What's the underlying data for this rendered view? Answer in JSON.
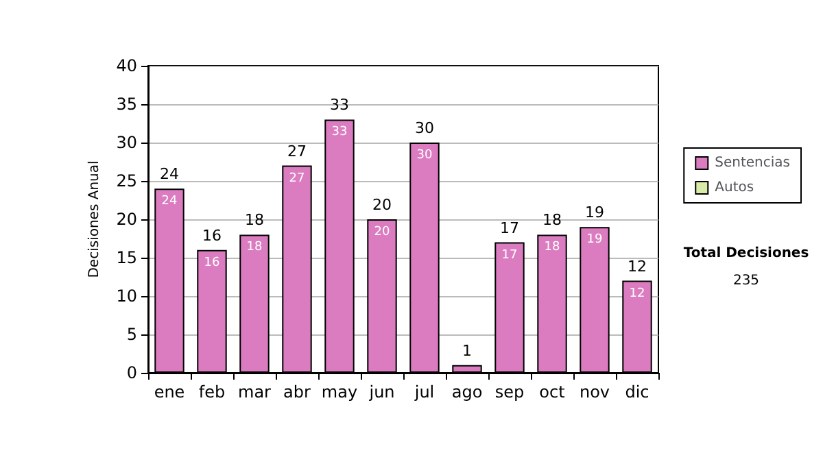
{
  "chart_data": {
    "type": "bar",
    "ylabel": "Decisiones Anual",
    "categories": [
      "ene",
      "feb",
      "mar",
      "abr",
      "may",
      "jun",
      "jul",
      "ago",
      "sep",
      "oct",
      "nov",
      "dic"
    ],
    "series": [
      {
        "name": "Sentencias",
        "color": "#dc7cc0",
        "values": [
          24,
          16,
          18,
          27,
          33,
          20,
          30,
          1,
          17,
          18,
          19,
          12
        ],
        "value_labels": [
          "24",
          "16",
          "18",
          "27",
          "33",
          "20",
          "30",
          null,
          "17",
          "18",
          "19",
          "12"
        ]
      },
      {
        "name": "Autos",
        "color": "#d8eca8",
        "values": [
          null,
          null,
          null,
          null,
          null,
          null,
          null,
          null,
          null,
          null,
          null,
          null
        ]
      }
    ],
    "stacked": true,
    "totals": [
      "24",
      "16",
      "18",
      "27",
      "33",
      "20",
      "30",
      "1",
      "17",
      "18",
      "19",
      "12"
    ],
    "ylim": [
      0,
      40
    ],
    "yticks": [
      0,
      5,
      10,
      15,
      20,
      25,
      30,
      35,
      40
    ],
    "grid": "y",
    "legend": "right",
    "annotations": [
      "Total Decisiones",
      "235"
    ]
  }
}
